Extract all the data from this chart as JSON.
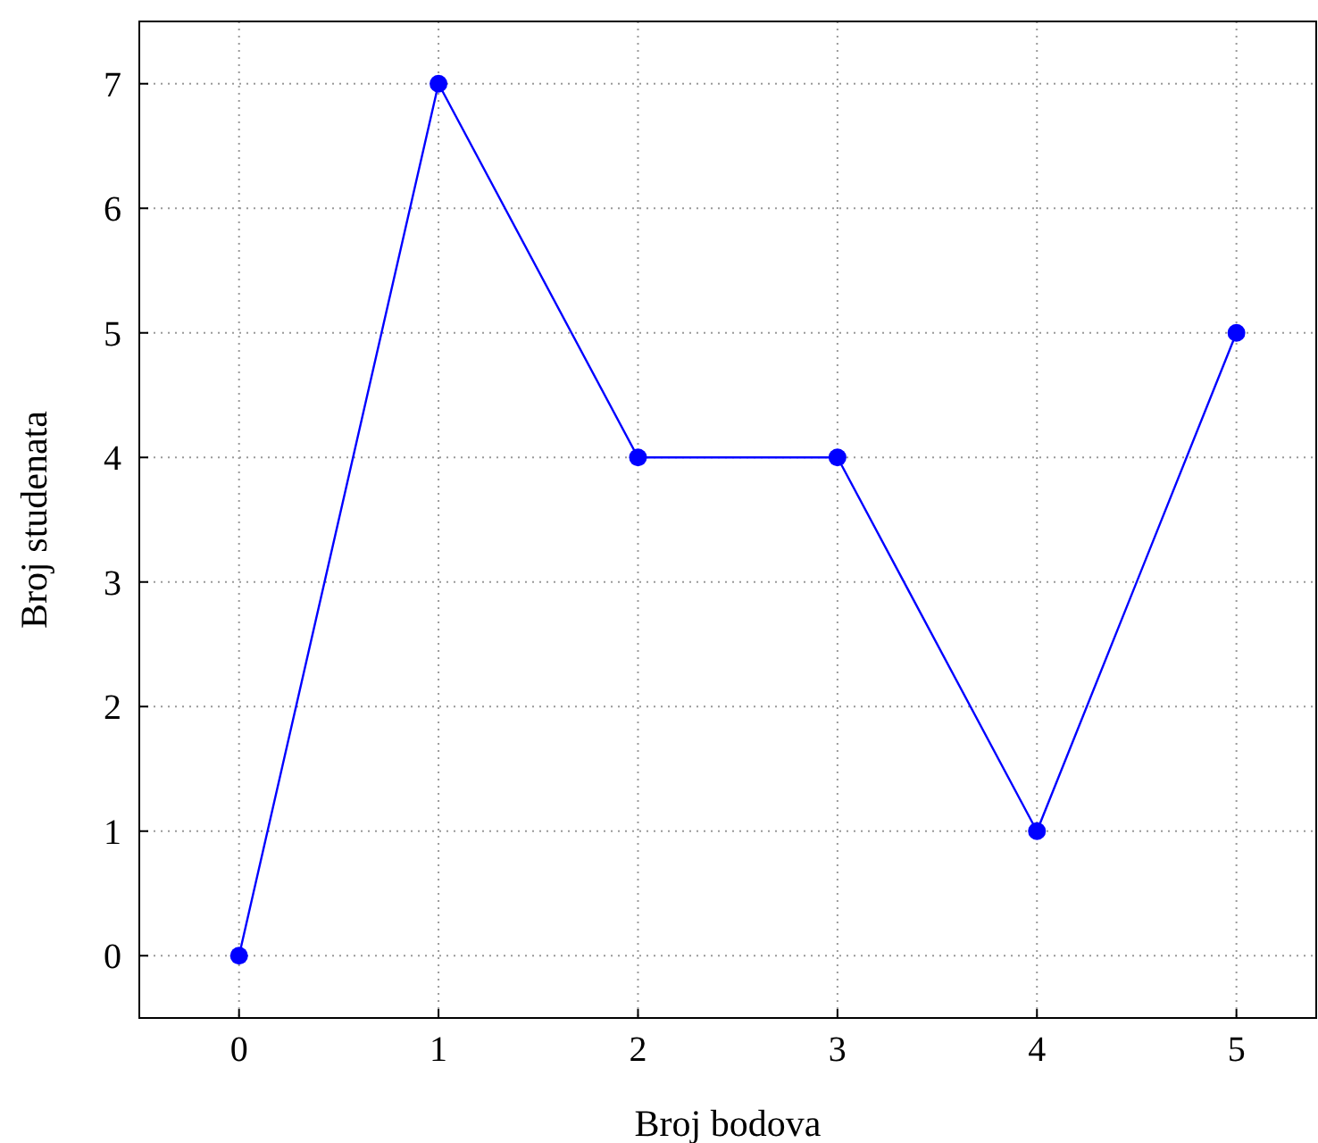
{
  "chart_data": {
    "type": "line",
    "xlabel": "Broj bodova",
    "ylabel": "Broj studenata",
    "x": [
      0,
      1,
      2,
      3,
      4,
      5
    ],
    "series": [
      {
        "color": "#0000ff",
        "values": [
          0,
          7,
          4,
          4,
          1,
          5
        ]
      }
    ],
    "xlim": [
      -0.5,
      5.4
    ],
    "xticks": [
      0,
      1,
      2,
      3,
      4,
      5
    ],
    "ylim": [
      -0.5,
      7.5
    ],
    "yticks": [
      0,
      1,
      2,
      3,
      4,
      5,
      6,
      7
    ],
    "grid": true,
    "marker": "circle",
    "line_style": "solid"
  }
}
